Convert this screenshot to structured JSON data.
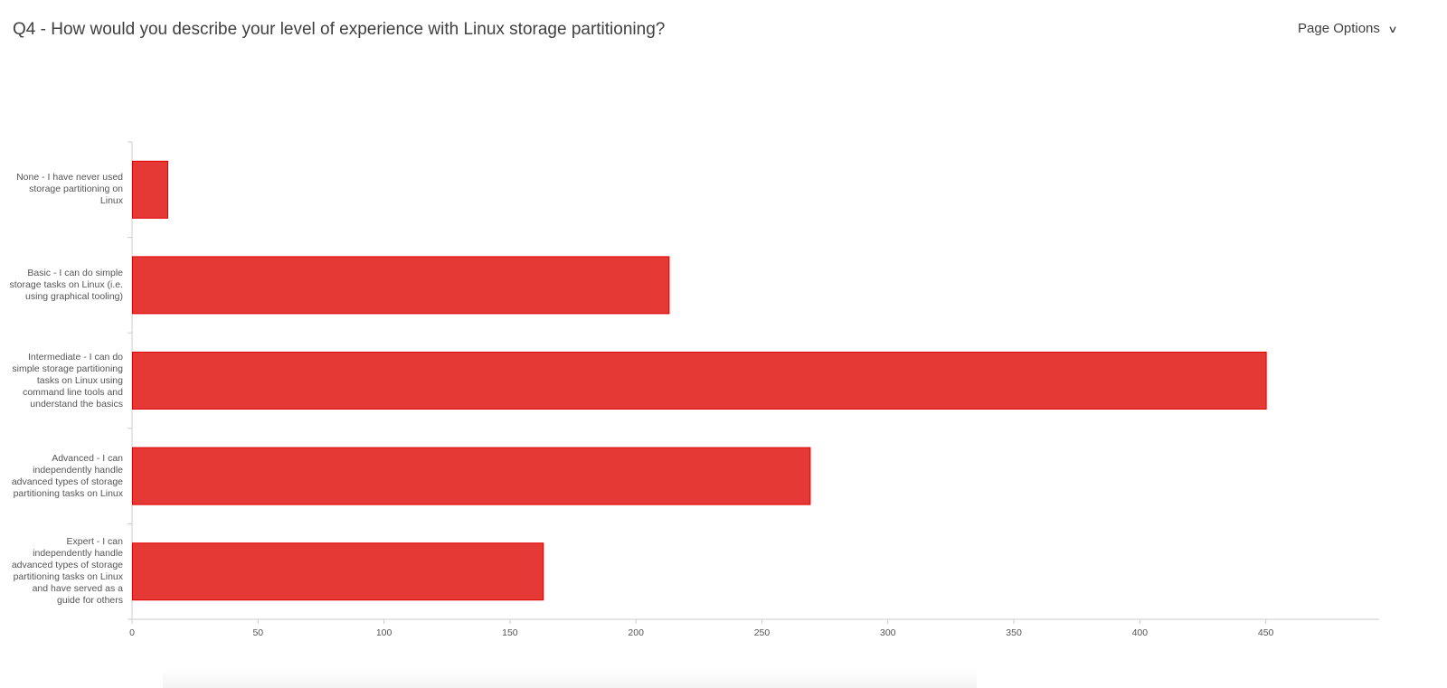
{
  "header": {
    "title": "Q4 - How would you describe your level of experience with Linux storage partitioning?",
    "page_options_label": "Page Options"
  },
  "colors": {
    "bar": "#e53935",
    "bar_border": "#e00000",
    "axis": "#cccccc"
  },
  "chart_data": {
    "type": "bar",
    "orientation": "horizontal",
    "title": "Q4 - How would you describe your level of experience with Linux storage partitioning?",
    "xlabel": "",
    "ylabel": "",
    "categories": [
      "None - I have never used storage partitioning on Linux",
      "Basic - I can do simple storage tasks on Linux (i.e. using graphical tooling)",
      "Intermediate - I can do simple storage partitioning tasks on Linux using command line tools and understand the basics",
      "Advanced - I can independently handle advanced types of storage partitioning tasks on Linux",
      "Expert - I can independently handle advanced types of storage partitioning tasks on Linux and have served as a guide for others"
    ],
    "values": [
      14,
      213,
      450,
      269,
      163
    ],
    "xlim": [
      0,
      495
    ],
    "xticks": [
      "0",
      "50",
      "100",
      "150",
      "200",
      "250",
      "300",
      "350",
      "400",
      "450"
    ],
    "grid": false,
    "legend": "none"
  }
}
